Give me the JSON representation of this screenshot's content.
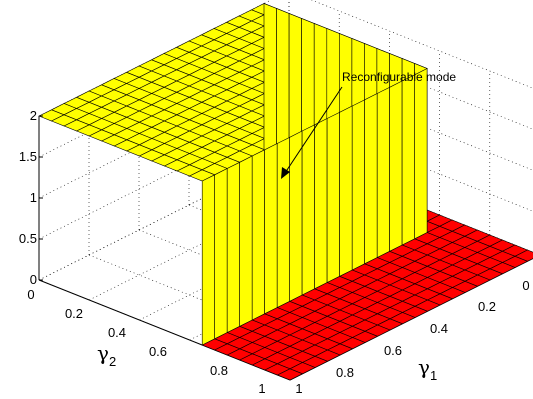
{
  "chart_data": {
    "type": "surface3d",
    "z_ticks": [
      "0",
      "0.5",
      "1",
      "1.5",
      "2"
    ],
    "x_ticks": [
      "0",
      "0.2",
      "0.4",
      "0.6",
      "0.8",
      "1"
    ],
    "y_ticks": [
      "0",
      "0.2",
      "0.4",
      "0.6",
      "0.8",
      "1"
    ],
    "xlabel": {
      "symbol": "γ",
      "sub": "1"
    },
    "ylabel": {
      "symbol": "γ",
      "sub": "2"
    },
    "xlim": [
      0,
      1
    ],
    "ylim": [
      0,
      1
    ],
    "zlim": [
      0,
      2
    ],
    "grid": true,
    "grid_spacing": 0.05,
    "plateau_level": 2,
    "plateau_gamma1_range": [
      0,
      0.9
    ],
    "plateau_gamma2_range": [
      0,
      0.65
    ],
    "floor_level": 0,
    "colors": {
      "plateau": "#ffff00",
      "floor": "#ff0000",
      "edges": "#000000"
    },
    "annotations": [
      {
        "text": "Reconfigurable mode"
      }
    ]
  }
}
